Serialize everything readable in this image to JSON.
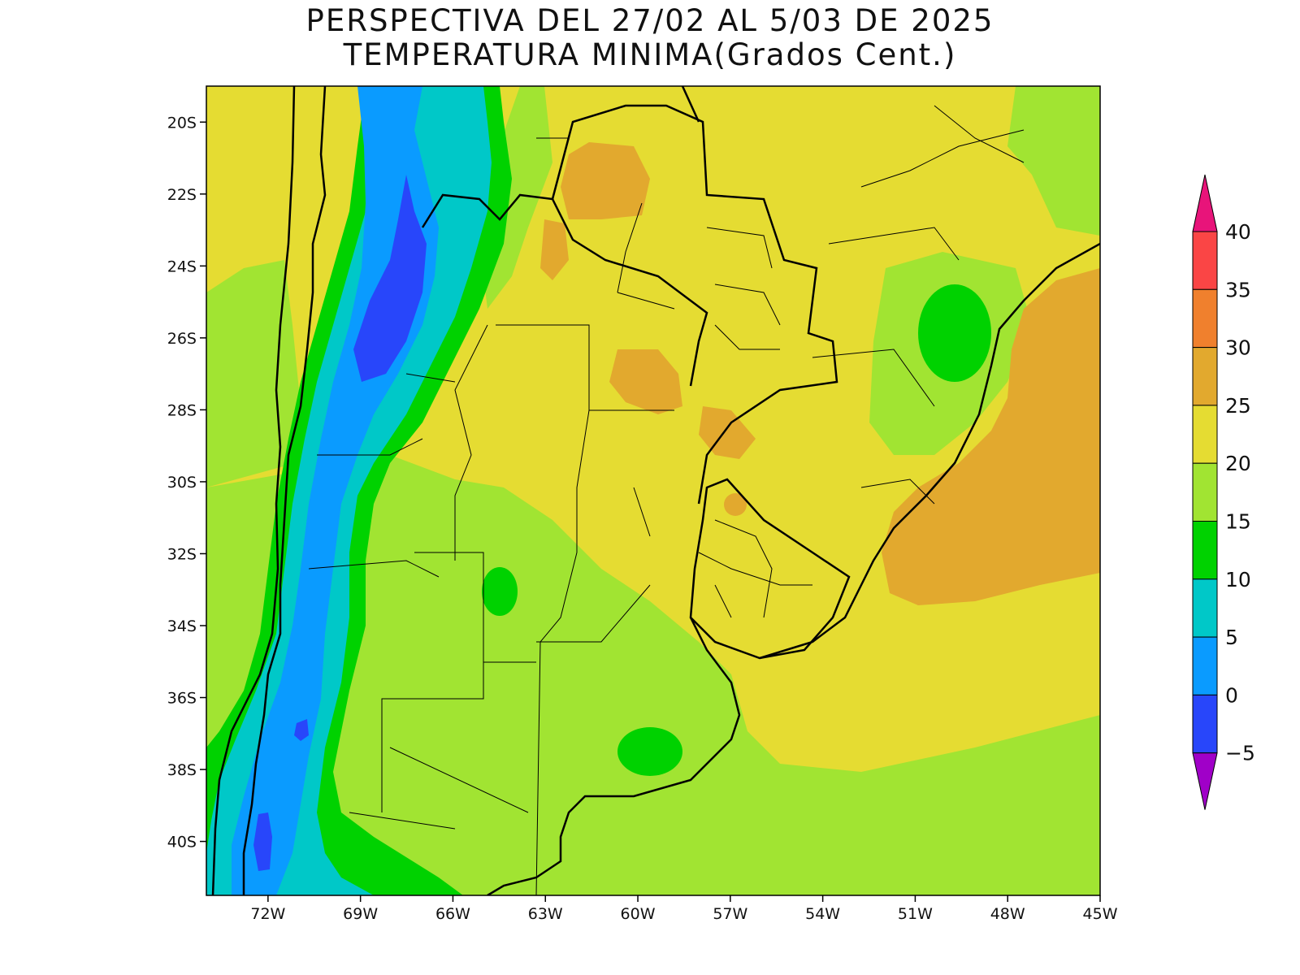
{
  "title": {
    "line1": "PERSPECTIVA DEL 27/02 AL 5/03 DE 2025",
    "line2": "TEMPERATURA MINIMA(Grados Cent.)"
  },
  "map": {
    "lon_range": [
      -74,
      -45
    ],
    "lat_range": [
      -41.5,
      -19
    ],
    "lat_ticks": [
      {
        "value": -20,
        "label": "20S"
      },
      {
        "value": -22,
        "label": "22S"
      },
      {
        "value": -24,
        "label": "24S"
      },
      {
        "value": -26,
        "label": "26S"
      },
      {
        "value": -28,
        "label": "28S"
      },
      {
        "value": -30,
        "label": "30S"
      },
      {
        "value": -32,
        "label": "32S"
      },
      {
        "value": -34,
        "label": "34S"
      },
      {
        "value": -36,
        "label": "36S"
      },
      {
        "value": -38,
        "label": "38S"
      },
      {
        "value": -40,
        "label": "40S"
      }
    ],
    "lon_ticks": [
      {
        "value": -72,
        "label": "72W"
      },
      {
        "value": -69,
        "label": "69W"
      },
      {
        "value": -66,
        "label": "66W"
      },
      {
        "value": -63,
        "label": "63W"
      },
      {
        "value": -60,
        "label": "60W"
      },
      {
        "value": -57,
        "label": "57W"
      },
      {
        "value": -54,
        "label": "54W"
      },
      {
        "value": -51,
        "label": "51W"
      },
      {
        "value": -48,
        "label": "48W"
      },
      {
        "value": -45,
        "label": "45W"
      }
    ]
  },
  "colorbar": {
    "levels": [
      {
        "label": "40",
        "value": 40
      },
      {
        "label": "35",
        "value": 35
      },
      {
        "label": "30",
        "value": 30
      },
      {
        "label": "25",
        "value": 25
      },
      {
        "label": "20",
        "value": 20
      },
      {
        "label": "15",
        "value": 15
      },
      {
        "label": "10",
        "value": 10
      },
      {
        "label": "5",
        "value": 5
      },
      {
        "label": "0",
        "value": 0
      },
      {
        "label": "−5",
        "value": -5
      }
    ],
    "bins": [
      {
        "range": "> 40",
        "color": "#e8147a"
      },
      {
        "range": "35-40",
        "color": "#fa4545"
      },
      {
        "range": "30-35",
        "color": "#f0802d"
      },
      {
        "range": "25-30",
        "color": "#e2a92e"
      },
      {
        "range": "20-25",
        "color": "#e5dc32"
      },
      {
        "range": "15-20",
        "color": "#a1e432"
      },
      {
        "range": "10-15",
        "color": "#00d200"
      },
      {
        "range": "5-10",
        "color": "#00c8c8"
      },
      {
        "range": "0-5",
        "color": "#0a9bff"
      },
      {
        "range": "-5-0",
        "color": "#2846fa"
      },
      {
        "range": "< -5",
        "color": "#a000c8"
      }
    ]
  }
}
